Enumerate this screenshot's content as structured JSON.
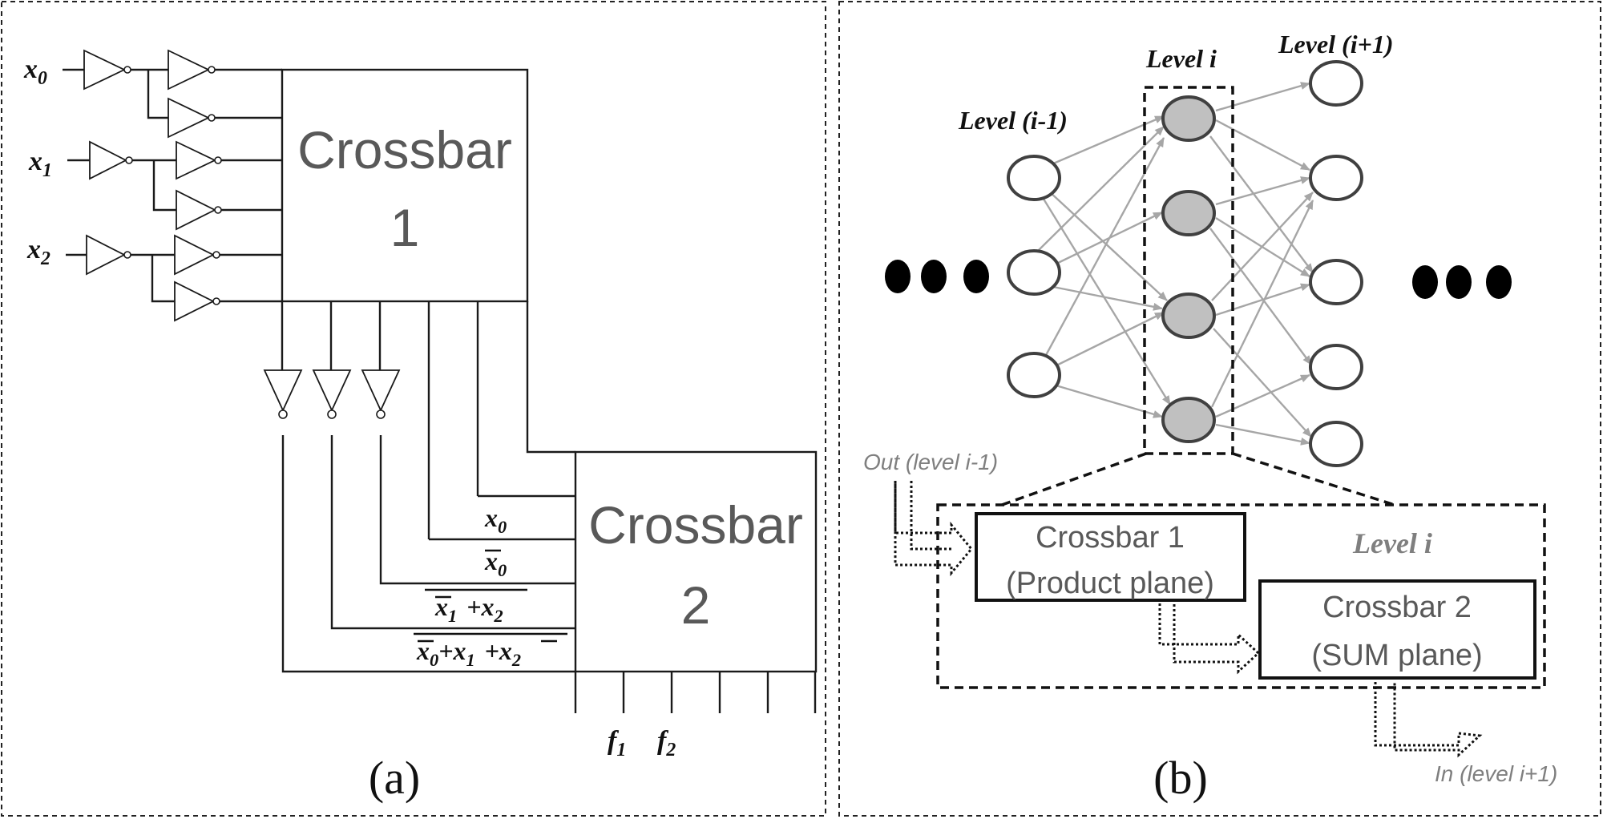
{
  "panel_a": {
    "caption": "(a)",
    "inputs": [
      {
        "base": "x",
        "sub": "0"
      },
      {
        "base": "x",
        "sub": "1"
      },
      {
        "base": "x",
        "sub": "2"
      }
    ],
    "crossbar1": {
      "line1": "Crossbar",
      "line2": "1"
    },
    "crossbar2": {
      "line1": "Crossbar",
      "line2": "2"
    },
    "terms": {
      "t1": {
        "x": "x",
        "s": "0"
      },
      "t2": {
        "x": "x",
        "s": "0"
      },
      "t3": {
        "x1": "x",
        "s1": "1",
        "plus": "+",
        "x2": "x",
        "s2": "2"
      },
      "t4": {
        "x0": "x",
        "s0": "0",
        "plus1": "+",
        "x1": "x",
        "s1": "1",
        "plus2": "+",
        "x2": "x",
        "s2": "2"
      }
    },
    "outputs": [
      {
        "base": "f",
        "sub": "1"
      },
      {
        "base": "f",
        "sub": "2"
      }
    ]
  },
  "panel_b": {
    "caption": "(b)",
    "levels": {
      "prev": "Level (i-1)",
      "cur": "Level i",
      "next": "Level (i+1)"
    },
    "detail": {
      "out_label": "Out (level i-1)",
      "level_label": "Level i",
      "crossbar1": {
        "line1": "Crossbar 1",
        "line2": "(Product plane)"
      },
      "crossbar2": {
        "line1": "Crossbar 2",
        "line2": "(SUM plane)"
      },
      "in_label": "In (level i+1)"
    }
  },
  "colors": {
    "line": "#1a1a1a",
    "crossbar_text": "#595959",
    "edge": "#a6a6a6",
    "node_fill_level_i": "#c0c0c0",
    "note_text": "#7f7f7f"
  }
}
